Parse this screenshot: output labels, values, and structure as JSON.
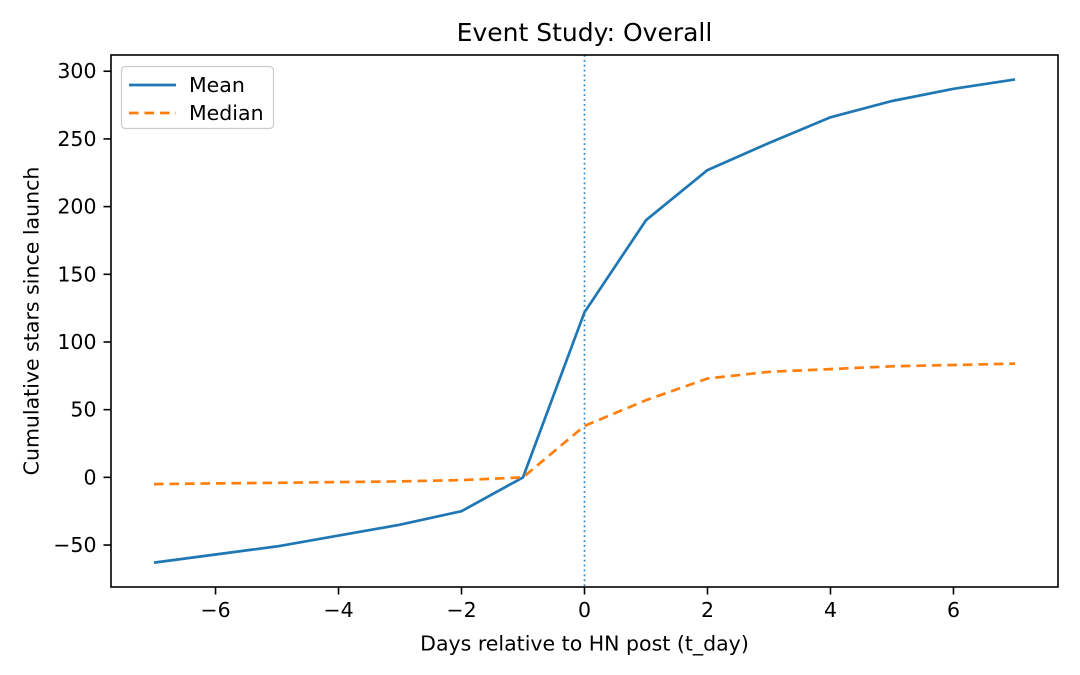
{
  "chart_data": {
    "type": "line",
    "title": "Event Study: Overall",
    "xlabel": "Days relative to HN post (t_day)",
    "ylabel": "Cumulative stars since launch",
    "xlim": [
      -7.7,
      7.7
    ],
    "ylim": [
      -81,
      312
    ],
    "xticks": [
      -6,
      -4,
      -2,
      0,
      2,
      4,
      6
    ],
    "yticks": [
      -50,
      0,
      50,
      100,
      150,
      200,
      250,
      300
    ],
    "grid": false,
    "x": [
      -7,
      -6,
      -5,
      -4,
      -3,
      -2,
      -1,
      0,
      1,
      2,
      3,
      4,
      5,
      6,
      7
    ],
    "series": [
      {
        "name": "Mean",
        "color": "#1f77b4",
        "style": "solid",
        "values": [
          -63,
          -57,
          -51,
          -43,
          -35,
          -25,
          0,
          122,
          190,
          227,
          247,
          266,
          278,
          287,
          294
        ]
      },
      {
        "name": "Median",
        "color": "#ff7f0e",
        "style": "dashed",
        "values": [
          -5,
          -4.5,
          -4,
          -3.5,
          -3,
          -2,
          0,
          38,
          57,
          73,
          78,
          80,
          82,
          83,
          84
        ]
      }
    ],
    "vline": {
      "x": 0,
      "color": "#1f77b4",
      "style": "dotted"
    },
    "legend": {
      "position": "upper left",
      "entries": [
        "Mean",
        "Median"
      ]
    }
  },
  "colors": {
    "background": "#ffffff",
    "axis": "#000000",
    "text": "#000000",
    "legend_border": "#cccccc"
  }
}
